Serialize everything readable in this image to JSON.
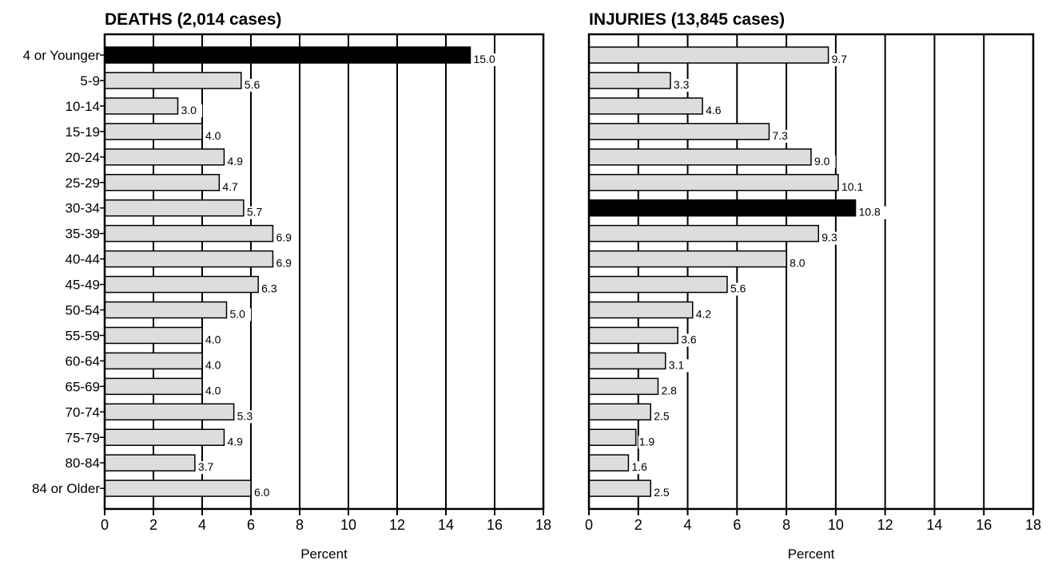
{
  "chart_data": [
    {
      "type": "bar",
      "orientation": "horizontal",
      "title": "DEATHS (2,014 cases)",
      "xlabel": "Percent",
      "xlim": [
        0,
        18
      ],
      "xticks": [
        "0",
        "2",
        "4",
        "6",
        "8",
        "10",
        "12",
        "14",
        "16",
        "18"
      ],
      "grid": "vertical gridlines",
      "categories": [
        "4 or Younger",
        "5-9",
        "10-14",
        "15-19",
        "20-24",
        "25-29",
        "30-34",
        "35-39",
        "40-44",
        "45-49",
        "50-54",
        "55-59",
        "60-64",
        "65-69",
        "70-74",
        "75-79",
        "80-84",
        "84 or Older"
      ],
      "values": [
        15.0,
        5.6,
        3.0,
        4.0,
        4.9,
        4.7,
        5.7,
        6.9,
        6.9,
        6.3,
        5.0,
        4.0,
        4.0,
        4.0,
        5.3,
        4.9,
        3.7,
        6.0
      ],
      "value_labels": [
        "15.0",
        "5.6",
        "3.0",
        "4.0",
        "4.9",
        "4.7",
        "5.7",
        "6.9",
        "6.9",
        "6.3",
        "5.0",
        "4.0",
        "4.0",
        "4.0",
        "5.3",
        "4.9",
        "3.7",
        "6.0"
      ],
      "highlight_index": 0,
      "bar_color": "#dddddd",
      "highlight_color": "#000000"
    },
    {
      "type": "bar",
      "orientation": "horizontal",
      "title": "INJURIES (13,845 cases)",
      "xlabel": "Percent",
      "xlim": [
        0,
        18
      ],
      "xticks": [
        "0",
        "2",
        "4",
        "6",
        "8",
        "10",
        "12",
        "14",
        "16",
        "18"
      ],
      "grid": "vertical gridlines",
      "categories": [
        "4 or Younger",
        "5-9",
        "10-14",
        "15-19",
        "20-24",
        "25-29",
        "30-34",
        "35-39",
        "40-44",
        "45-49",
        "50-54",
        "55-59",
        "60-64",
        "65-69",
        "70-74",
        "75-79",
        "80-84",
        "84 or Older"
      ],
      "values": [
        9.7,
        3.3,
        4.6,
        7.3,
        9.0,
        10.1,
        10.8,
        9.3,
        8.0,
        5.6,
        4.2,
        3.6,
        3.1,
        2.8,
        2.5,
        1.9,
        1.6,
        2.5
      ],
      "value_labels": [
        "9.7",
        "3.3",
        "4.6",
        "7.3",
        "9.0",
        "10.1",
        "10.8",
        "9.3",
        "8.0",
        "5.6",
        "4.2",
        "3.6",
        "3.1",
        "2.8",
        "2.5",
        "1.9",
        "1.6",
        "2.5"
      ],
      "highlight_index": 6,
      "bar_color": "#dddddd",
      "highlight_color": "#000000"
    }
  ]
}
